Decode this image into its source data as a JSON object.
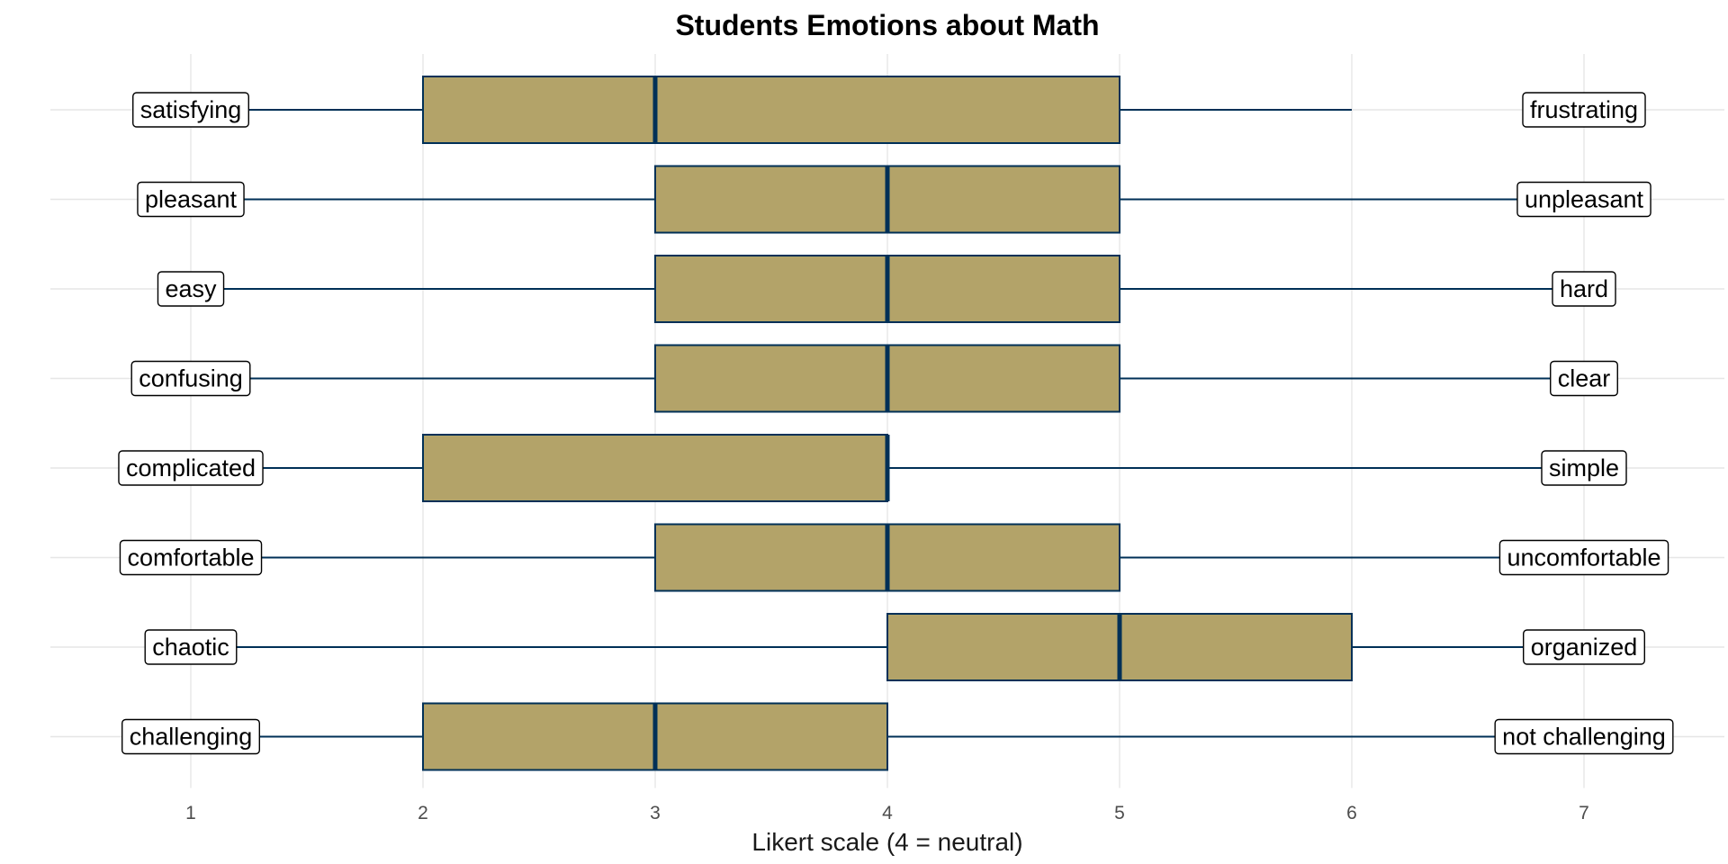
{
  "chart_data": {
    "type": "boxplot",
    "title": "Students Emotions about Math",
    "xlabel": "Likert scale (4 = neutral)",
    "ylabel": "",
    "xlim": [
      0.4,
      7.6
    ],
    "x_ticks": [
      1,
      2,
      3,
      4,
      5,
      6,
      7
    ],
    "grid": true,
    "colors": {
      "box_fill": "#B3A369",
      "stroke": "#003057",
      "grid": "#e6e6e6",
      "label_border": "#000000"
    },
    "items": [
      {
        "left": "satisfying",
        "right": "frustrating",
        "whisker_low": 1,
        "q1": 2,
        "median": 3,
        "q3": 5,
        "whisker_high": 6
      },
      {
        "left": "pleasant",
        "right": "unpleasant",
        "whisker_low": 1,
        "q1": 3,
        "median": 4,
        "q3": 5,
        "whisker_high": 7
      },
      {
        "left": "easy",
        "right": "hard",
        "whisker_low": 1,
        "q1": 3,
        "median": 4,
        "q3": 5,
        "whisker_high": 7
      },
      {
        "left": "confusing",
        "right": "clear",
        "whisker_low": 1,
        "q1": 3,
        "median": 4,
        "q3": 5,
        "whisker_high": 7
      },
      {
        "left": "complicated",
        "right": "simple",
        "whisker_low": 1,
        "q1": 2,
        "median": 4,
        "q3": 4,
        "whisker_high": 7
      },
      {
        "left": "comfortable",
        "right": "uncomfortable",
        "whisker_low": 1,
        "q1": 3,
        "median": 4,
        "q3": 5,
        "whisker_high": 7
      },
      {
        "left": "chaotic",
        "right": "organized",
        "whisker_low": 1,
        "q1": 4,
        "median": 5,
        "q3": 6,
        "whisker_high": 7
      },
      {
        "left": "challenging",
        "right": "not challenging",
        "whisker_low": 1,
        "q1": 2,
        "median": 3,
        "q3": 4,
        "whisker_high": 7
      }
    ]
  }
}
